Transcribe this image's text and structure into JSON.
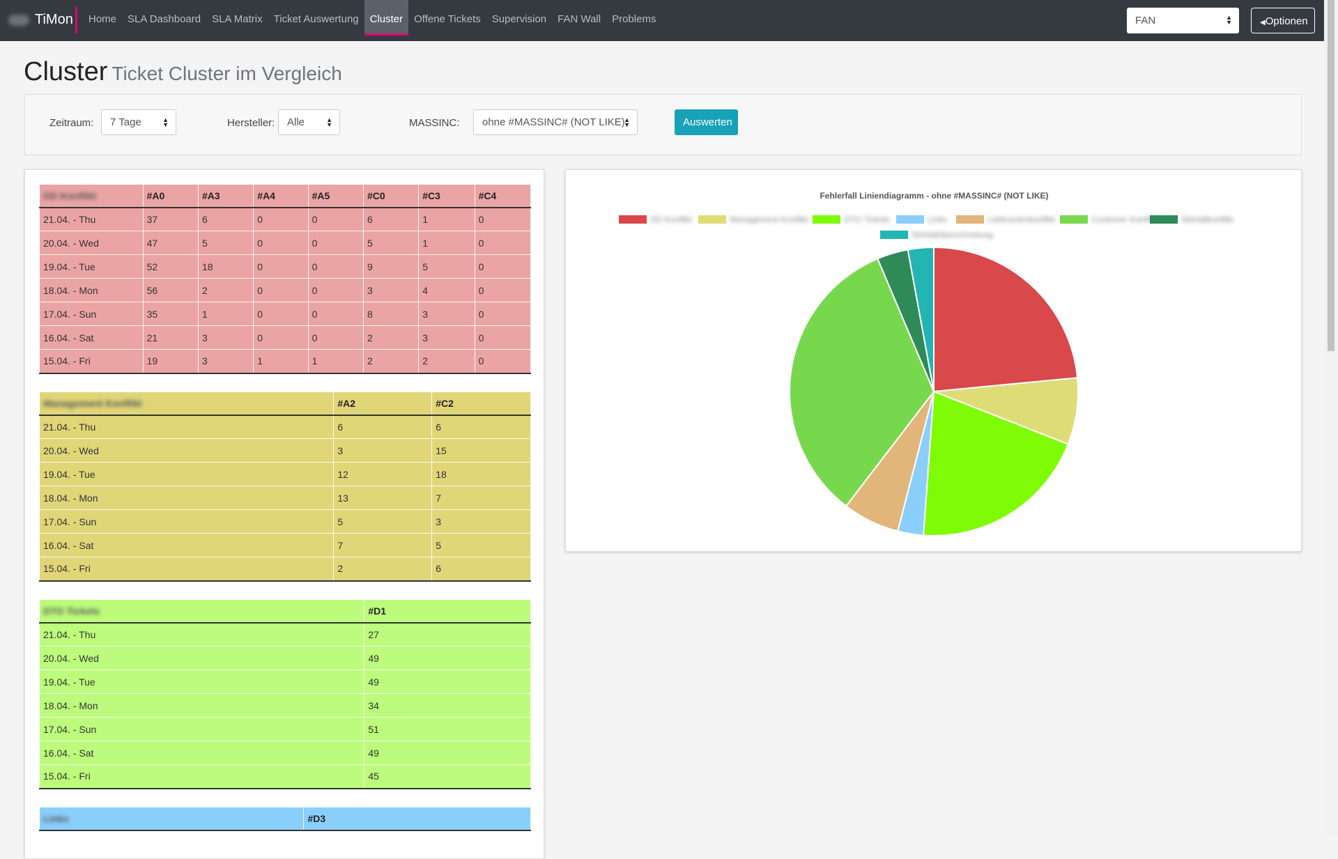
{
  "nav": {
    "brand": "TiMon",
    "items": [
      "Home",
      "SLA Dashboard",
      "SLA Matrix",
      "Ticket Auswertung",
      "Cluster",
      "Offene Tickets",
      "Supervision",
      "FAN Wall",
      "Problems"
    ],
    "active": "Cluster",
    "select_value": "FAN",
    "options_button": "Optionen",
    "accent_color": "#e20074"
  },
  "header": {
    "title": "Cluster",
    "subtitle": "Ticket Cluster im Vergleich"
  },
  "filters": {
    "zeitraum_label": "Zeitraum:",
    "zeitraum_value": "7 Tage",
    "hersteller_label": "Hersteller:",
    "hersteller_value": "Alle",
    "massinc_label": "MASSINC:",
    "massinc_value": "ohne #MASSINC# (NOT LIKE)",
    "submit_label": "Auswerten"
  },
  "tables": [
    {
      "name": "DD Konflikt",
      "color": "#eba4a4",
      "columns": [
        "#A0",
        "#A3",
        "#A4",
        "#A5",
        "#C0",
        "#C3",
        "#C4"
      ],
      "rows": [
        {
          "date": "21.04. - Thu",
          "values": [
            "37",
            "6",
            "0",
            "0",
            "6",
            "1",
            "0"
          ]
        },
        {
          "date": "20.04. - Wed",
          "values": [
            "47",
            "5",
            "0",
            "0",
            "5",
            "1",
            "0"
          ]
        },
        {
          "date": "19.04. - Tue",
          "values": [
            "52",
            "18",
            "0",
            "0",
            "9",
            "5",
            "0"
          ]
        },
        {
          "date": "18.04. - Mon",
          "values": [
            "56",
            "2",
            "0",
            "0",
            "3",
            "4",
            "0"
          ]
        },
        {
          "date": "17.04. - Sun",
          "values": [
            "35",
            "1",
            "0",
            "0",
            "8",
            "3",
            "0"
          ]
        },
        {
          "date": "16.04. - Sat",
          "values": [
            "21",
            "3",
            "0",
            "0",
            "2",
            "3",
            "0"
          ]
        },
        {
          "date": "15.04. - Fri",
          "values": [
            "19",
            "3",
            "1",
            "1",
            "2",
            "2",
            "0"
          ]
        }
      ]
    },
    {
      "name": "Management Konflikt",
      "color": "#e0d678",
      "columns": [
        "#A2",
        "#C2"
      ],
      "rows": [
        {
          "date": "21.04. - Thu",
          "values": [
            "6",
            "6"
          ]
        },
        {
          "date": "20.04. - Wed",
          "values": [
            "3",
            "15"
          ]
        },
        {
          "date": "19.04. - Tue",
          "values": [
            "12",
            "18"
          ]
        },
        {
          "date": "18.04. - Mon",
          "values": [
            "13",
            "7"
          ]
        },
        {
          "date": "17.04. - Sun",
          "values": [
            "5",
            "3"
          ]
        },
        {
          "date": "16.04. - Sat",
          "values": [
            "7",
            "5"
          ]
        },
        {
          "date": "15.04. - Fri",
          "values": [
            "2",
            "6"
          ]
        }
      ]
    },
    {
      "name": "DTO Tickets",
      "color": "#bcfb7c",
      "columns": [
        "#D1"
      ],
      "rows": [
        {
          "date": "21.04. - Thu",
          "values": [
            "27"
          ]
        },
        {
          "date": "20.04. - Wed",
          "values": [
            "49"
          ]
        },
        {
          "date": "19.04. - Tue",
          "values": [
            "49"
          ]
        },
        {
          "date": "18.04. - Mon",
          "values": [
            "34"
          ]
        },
        {
          "date": "17.04. - Sun",
          "values": [
            "51"
          ]
        },
        {
          "date": "16.04. - Sat",
          "values": [
            "49"
          ]
        },
        {
          "date": "15.04. - Fri",
          "values": [
            "45"
          ]
        }
      ]
    },
    {
      "name": "Links",
      "color": "#8acffc",
      "columns": [
        "#D3"
      ],
      "rows": []
    }
  ],
  "chart_data": {
    "type": "pie",
    "title": "Fehlerfall Liniendiagramm - ohne #MASSINC# (NOT LIKE)",
    "categories": [
      "DD Konflikt",
      "Management Konflikt",
      "DTO Tickets",
      "Links",
      "Lieferantenkonflikt",
      "Customer Konflikt",
      "Störfallkonflikt",
      "Störfallüberschreitung"
    ],
    "values": [
      23.6,
      7.5,
      20.3,
      2.9,
      6.4,
      33.4,
      3.5,
      2.9
    ],
    "colors": [
      "#d9484a",
      "#dedc76",
      "#7ffc05",
      "#8acffc",
      "#e2b57b",
      "#78d84d",
      "#2e8a57",
      "#22b5b2"
    ],
    "legend_position": "top"
  }
}
